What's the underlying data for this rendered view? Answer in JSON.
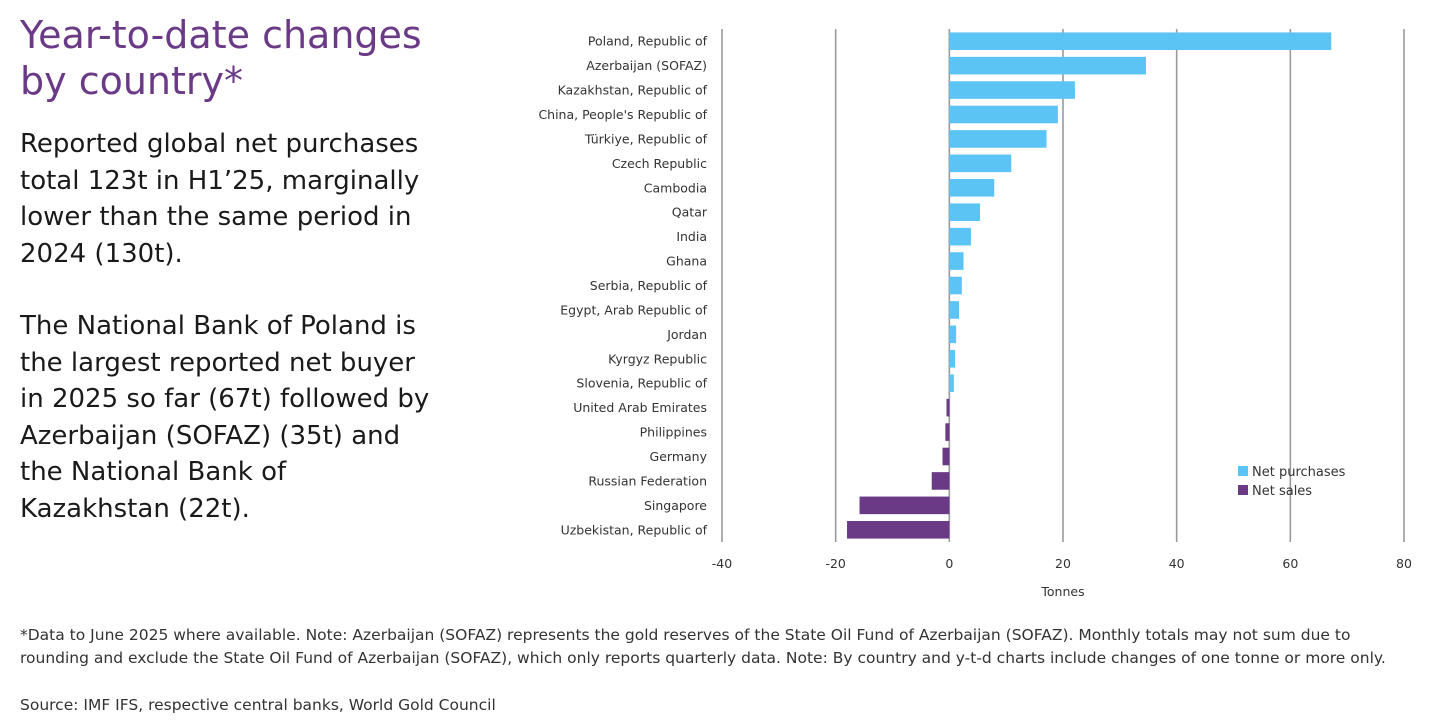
{
  "heading": "Year-to-date changes by country*",
  "paragraphs": [
    "Reported global net purchases total 123t in H1’25, marginally lower than the same period in 2024 (130t).",
    "The National Bank of Poland is the largest reported net buyer in 2025 so far (67t) followed by Azerbaijan (SOFAZ) (35t) and the National Bank of Kazakhstan (22t)."
  ],
  "footnote": "*Data to June 2025 where available. Note: Azerbaijan (SOFAZ) represents the gold reserves of the State Oil Fund of Azerbaijan (SOFAZ). Monthly totals may not sum due to rounding and exclude the State Oil Fund of Azerbaijan (SOFAZ), which only reports quarterly data. Note: By country and y-t-d charts include changes of one tonne or more only.",
  "source": "Source: IMF IFS, respective central banks, World Gold Council",
  "colors": {
    "heading": "#6b3a87",
    "net_purchases": "#5bc4f5",
    "net_sales": "#6b3a87",
    "gridline": "#9a9a9a"
  },
  "chart_data": {
    "type": "bar",
    "orientation": "horizontal",
    "title": "",
    "xlabel": "Tonnes",
    "ylabel": "",
    "xlim": [
      -40,
      80
    ],
    "xticks": [
      -40,
      -20,
      0,
      20,
      40,
      60,
      80
    ],
    "grid": true,
    "legend_position": "bottom-right",
    "legend": [
      {
        "name": "Net purchases",
        "color": "#5bc4f5"
      },
      {
        "name": "Net sales",
        "color": "#6b3a87"
      }
    ],
    "categories": [
      "Poland, Republic of",
      "Azerbaijan (SOFAZ)",
      "Kazakhstan, Republic of",
      "China, People's Republic of",
      "Türkiye, Republic of",
      "Czech Republic",
      "Cambodia",
      "Qatar",
      "India",
      "Ghana",
      "Serbia, Republic of",
      "Egypt, Arab Republic of",
      "Jordan",
      "Kyrgyz Republic",
      "Slovenia, Republic of",
      "United Arab Emirates",
      "Philippines",
      "Germany",
      "Russian Federation",
      "Singapore",
      "Uzbekistan, Republic of"
    ],
    "values": [
      67.2,
      34.6,
      22.1,
      19.1,
      17.1,
      10.9,
      7.9,
      5.4,
      3.8,
      2.5,
      2.2,
      1.7,
      1.2,
      1.0,
      0.8,
      -0.5,
      -0.7,
      -1.2,
      -3.1,
      -15.8,
      -18.0
    ]
  }
}
